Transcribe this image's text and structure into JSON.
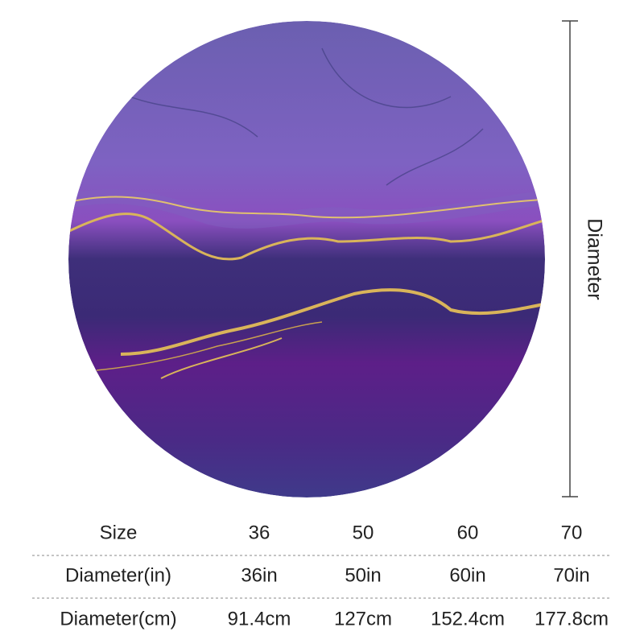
{
  "dimension_label": "Diameter",
  "table": {
    "rows": [
      [
        "Size",
        "36",
        "50",
        "60",
        "70"
      ],
      [
        "Diameter(in)",
        "36in",
        "50in",
        "60in",
        "70in"
      ],
      [
        "Diameter(cm)",
        "91.4cm",
        "127cm",
        "152.4cm",
        "177.8cm"
      ]
    ]
  }
}
